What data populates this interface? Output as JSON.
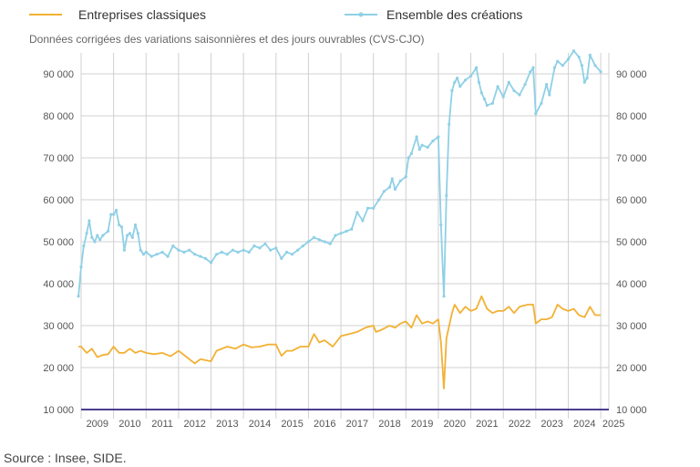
{
  "legend": {
    "series1": "Entreprises classiques",
    "series2": "Ensemble des créations"
  },
  "subtitle": "Données corrigées des variations saisonnières et des jours ouvrables (CVS-CJO)",
  "source": "Source : Insee, SIDE.",
  "colors": {
    "classiques": "#f2b134",
    "ensemble": "#8fd0e6",
    "axis": "#4a3f8f",
    "grid": "#d0d0d0"
  },
  "chart_data": {
    "type": "line",
    "title": "",
    "xlabel": "",
    "ylabel": "",
    "x_tick_labels": [
      "2009",
      "2010",
      "2011",
      "2012",
      "2013",
      "2014",
      "2015",
      "2016",
      "2017",
      "2018",
      "2019",
      "2020",
      "2021",
      "2022",
      "2023",
      "2024",
      "2025"
    ],
    "y_tick_labels_left": [
      "10 000",
      "20 000",
      "30 000",
      "40 000",
      "50 000",
      "60 000",
      "70 000",
      "80 000",
      "90 000"
    ],
    "y_tick_labels_right": [
      "10 000",
      "20 000",
      "30 000",
      "40 000",
      "50 000",
      "60 000",
      "70 000",
      "80 000",
      "90 000"
    ],
    "xlim": [
      2009.0,
      2025.25
    ],
    "ylim": [
      10000,
      95000
    ],
    "grid": true,
    "legend_position": "top-left",
    "series": [
      {
        "name": "Entreprises classiques",
        "color": "#f2b134",
        "marker": "none",
        "points": [
          [
            2008.92,
            25000
          ],
          [
            2009.0,
            25000
          ],
          [
            2009.17,
            23500
          ],
          [
            2009.33,
            24500
          ],
          [
            2009.5,
            22500
          ],
          [
            2009.67,
            23000
          ],
          [
            2009.83,
            23200
          ],
          [
            2010.0,
            25000
          ],
          [
            2010.17,
            23500
          ],
          [
            2010.33,
            23500
          ],
          [
            2010.5,
            24500
          ],
          [
            2010.67,
            23500
          ],
          [
            2010.83,
            24000
          ],
          [
            2011.0,
            23500
          ],
          [
            2011.25,
            23200
          ],
          [
            2011.5,
            23500
          ],
          [
            2011.75,
            22700
          ],
          [
            2012.0,
            24000
          ],
          [
            2012.25,
            22500
          ],
          [
            2012.5,
            21000
          ],
          [
            2012.67,
            22000
          ],
          [
            2013.0,
            21500
          ],
          [
            2013.17,
            24000
          ],
          [
            2013.5,
            25000
          ],
          [
            2013.75,
            24500
          ],
          [
            2014.0,
            25500
          ],
          [
            2014.25,
            24800
          ],
          [
            2014.5,
            25000
          ],
          [
            2014.75,
            25500
          ],
          [
            2015.0,
            25500
          ],
          [
            2015.17,
            22800
          ],
          [
            2015.33,
            24000
          ],
          [
            2015.5,
            24000
          ],
          [
            2015.75,
            25000
          ],
          [
            2016.0,
            25000
          ],
          [
            2016.17,
            28000
          ],
          [
            2016.33,
            26000
          ],
          [
            2016.5,
            26500
          ],
          [
            2016.75,
            25000
          ],
          [
            2017.0,
            27500
          ],
          [
            2017.25,
            28000
          ],
          [
            2017.5,
            28500
          ],
          [
            2017.75,
            29500
          ],
          [
            2018.0,
            30000
          ],
          [
            2018.08,
            28500
          ],
          [
            2018.25,
            29000
          ],
          [
            2018.5,
            30000
          ],
          [
            2018.67,
            29500
          ],
          [
            2018.83,
            30500
          ],
          [
            2019.0,
            31000
          ],
          [
            2019.17,
            29500
          ],
          [
            2019.33,
            32500
          ],
          [
            2019.5,
            30500
          ],
          [
            2019.67,
            31000
          ],
          [
            2019.83,
            30500
          ],
          [
            2020.0,
            31500
          ],
          [
            2020.08,
            26000
          ],
          [
            2020.17,
            15000
          ],
          [
            2020.25,
            27000
          ],
          [
            2020.42,
            33000
          ],
          [
            2020.5,
            35000
          ],
          [
            2020.67,
            33000
          ],
          [
            2020.83,
            34500
          ],
          [
            2021.0,
            33500
          ],
          [
            2021.17,
            34000
          ],
          [
            2021.33,
            37000
          ],
          [
            2021.5,
            34000
          ],
          [
            2021.67,
            33000
          ],
          [
            2021.83,
            33500
          ],
          [
            2022.0,
            33500
          ],
          [
            2022.17,
            34500
          ],
          [
            2022.33,
            33000
          ],
          [
            2022.5,
            34500
          ],
          [
            2022.75,
            35000
          ],
          [
            2022.92,
            35000
          ],
          [
            2023.0,
            30500
          ],
          [
            2023.17,
            31500
          ],
          [
            2023.33,
            31500
          ],
          [
            2023.5,
            32000
          ],
          [
            2023.67,
            35000
          ],
          [
            2023.83,
            34000
          ],
          [
            2024.0,
            33500
          ],
          [
            2024.17,
            34000
          ],
          [
            2024.33,
            32500
          ],
          [
            2024.5,
            32000
          ],
          [
            2024.67,
            34500
          ],
          [
            2024.83,
            32500
          ],
          [
            2025.0,
            32500
          ]
        ]
      },
      {
        "name": "Ensemble des créations",
        "color": "#8fd0e6",
        "marker": "circle",
        "points": [
          [
            2008.92,
            37000
          ],
          [
            2009.0,
            44000
          ],
          [
            2009.08,
            49000
          ],
          [
            2009.17,
            52000
          ],
          [
            2009.25,
            55000
          ],
          [
            2009.33,
            51000
          ],
          [
            2009.42,
            50000
          ],
          [
            2009.5,
            51500
          ],
          [
            2009.58,
            50500
          ],
          [
            2009.67,
            51500
          ],
          [
            2009.83,
            52500
          ],
          [
            2009.92,
            56500
          ],
          [
            2010.0,
            56500
          ],
          [
            2010.08,
            57500
          ],
          [
            2010.17,
            54000
          ],
          [
            2010.25,
            53500
          ],
          [
            2010.33,
            48000
          ],
          [
            2010.42,
            51500
          ],
          [
            2010.5,
            52000
          ],
          [
            2010.58,
            51000
          ],
          [
            2010.67,
            54000
          ],
          [
            2010.75,
            52000
          ],
          [
            2010.83,
            48000
          ],
          [
            2010.92,
            47000
          ],
          [
            2011.0,
            47500
          ],
          [
            2011.17,
            46500
          ],
          [
            2011.33,
            47000
          ],
          [
            2011.5,
            47500
          ],
          [
            2011.67,
            46500
          ],
          [
            2011.83,
            49000
          ],
          [
            2012.0,
            48000
          ],
          [
            2012.17,
            47500
          ],
          [
            2012.33,
            48000
          ],
          [
            2012.5,
            47000
          ],
          [
            2012.67,
            46500
          ],
          [
            2012.83,
            46000
          ],
          [
            2013.0,
            45000
          ],
          [
            2013.17,
            47000
          ],
          [
            2013.33,
            47500
          ],
          [
            2013.5,
            47000
          ],
          [
            2013.67,
            48000
          ],
          [
            2013.83,
            47500
          ],
          [
            2014.0,
            48000
          ],
          [
            2014.17,
            47500
          ],
          [
            2014.33,
            49000
          ],
          [
            2014.5,
            48500
          ],
          [
            2014.67,
            49500
          ],
          [
            2014.83,
            48000
          ],
          [
            2015.0,
            48500
          ],
          [
            2015.17,
            46000
          ],
          [
            2015.33,
            47500
          ],
          [
            2015.5,
            47000
          ],
          [
            2015.67,
            48000
          ],
          [
            2015.83,
            49000
          ],
          [
            2016.0,
            50000
          ],
          [
            2016.17,
            51000
          ],
          [
            2016.33,
            50500
          ],
          [
            2016.5,
            50000
          ],
          [
            2016.67,
            49500
          ],
          [
            2016.83,
            51500
          ],
          [
            2017.0,
            52000
          ],
          [
            2017.17,
            52500
          ],
          [
            2017.33,
            53000
          ],
          [
            2017.5,
            57000
          ],
          [
            2017.67,
            55000
          ],
          [
            2017.83,
            58000
          ],
          [
            2018.0,
            58000
          ],
          [
            2018.17,
            60000
          ],
          [
            2018.33,
            62000
          ],
          [
            2018.5,
            63000
          ],
          [
            2018.58,
            65000
          ],
          [
            2018.67,
            62500
          ],
          [
            2018.83,
            64500
          ],
          [
            2019.0,
            65500
          ],
          [
            2019.08,
            70000
          ],
          [
            2019.17,
            71000
          ],
          [
            2019.33,
            75000
          ],
          [
            2019.42,
            72000
          ],
          [
            2019.5,
            73000
          ],
          [
            2019.67,
            72500
          ],
          [
            2019.83,
            74000
          ],
          [
            2020.0,
            75000
          ],
          [
            2020.08,
            54000
          ],
          [
            2020.17,
            37000
          ],
          [
            2020.25,
            61000
          ],
          [
            2020.33,
            78000
          ],
          [
            2020.42,
            86000
          ],
          [
            2020.5,
            88000
          ],
          [
            2020.58,
            89000
          ],
          [
            2020.67,
            87000
          ],
          [
            2020.83,
            88500
          ],
          [
            2021.0,
            89500
          ],
          [
            2021.17,
            91500
          ],
          [
            2021.25,
            88000
          ],
          [
            2021.33,
            85500
          ],
          [
            2021.42,
            84000
          ],
          [
            2021.5,
            82500
          ],
          [
            2021.67,
            83000
          ],
          [
            2021.83,
            87000
          ],
          [
            2022.0,
            84500
          ],
          [
            2022.17,
            88000
          ],
          [
            2022.33,
            86000
          ],
          [
            2022.5,
            85000
          ],
          [
            2022.67,
            87500
          ],
          [
            2022.83,
            90500
          ],
          [
            2022.92,
            91500
          ],
          [
            2023.0,
            80500
          ],
          [
            2023.17,
            83000
          ],
          [
            2023.33,
            87500
          ],
          [
            2023.42,
            85000
          ],
          [
            2023.58,
            91500
          ],
          [
            2023.67,
            93000
          ],
          [
            2023.83,
            92000
          ],
          [
            2024.0,
            93500
          ],
          [
            2024.17,
            95500
          ],
          [
            2024.33,
            94000
          ],
          [
            2024.42,
            92000
          ],
          [
            2024.5,
            88000
          ],
          [
            2024.58,
            89000
          ],
          [
            2024.67,
            94500
          ],
          [
            2024.83,
            92000
          ],
          [
            2025.0,
            90500
          ]
        ]
      }
    ]
  }
}
